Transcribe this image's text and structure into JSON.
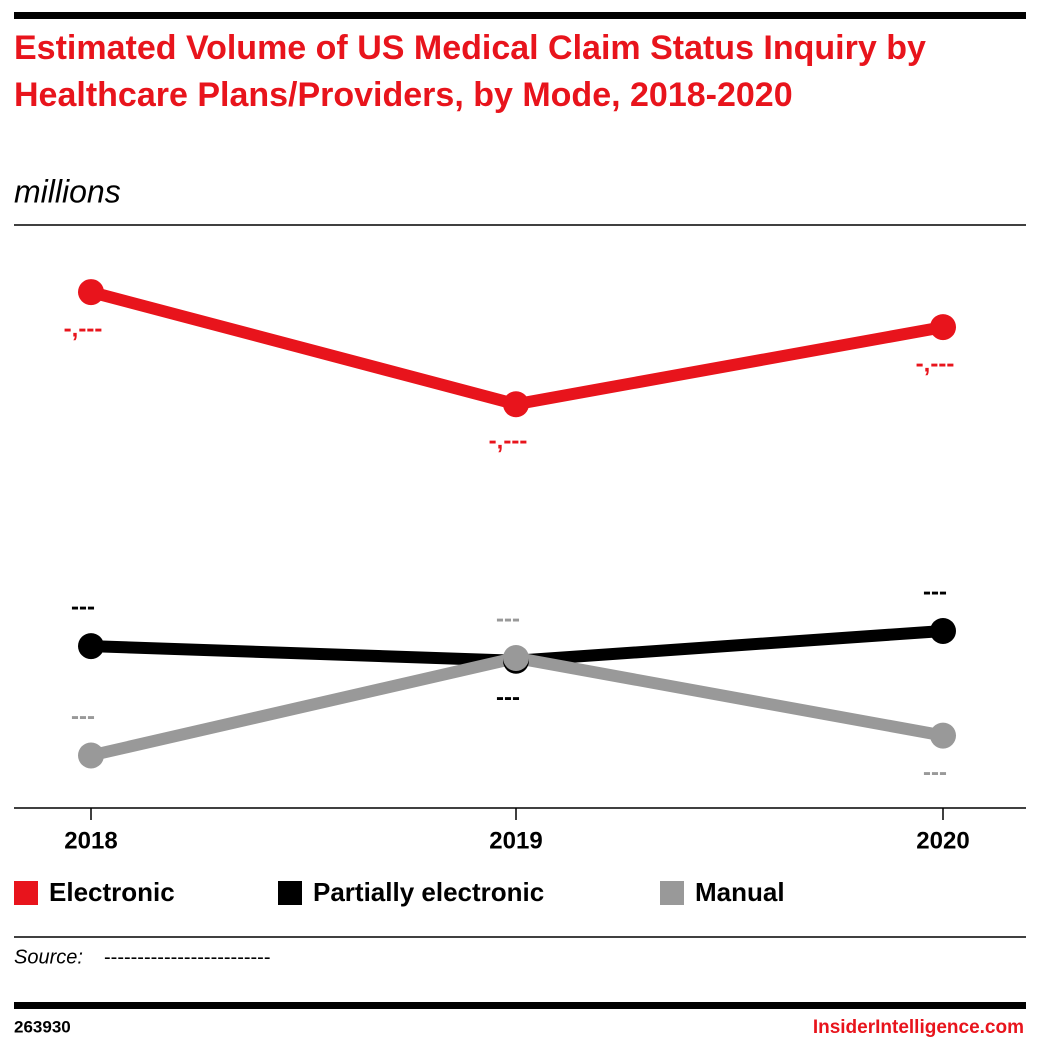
{
  "chart_data": {
    "type": "line",
    "title": "Estimated Volume of US Medical Claim Status Inquiry by Healthcare Plans/Providers, by Mode, 2018-2020",
    "subtitle": "millions",
    "categories": [
      "2018",
      "2019",
      "2020"
    ],
    "series": [
      {
        "name": "Electronic",
        "color": "#e8141c",
        "values": [
          1090,
          853,
          1016
        ],
        "value_labels": [
          "-,---",
          "-,---",
          "-,---"
        ]
      },
      {
        "name": "Partially electronic",
        "color": "#000000",
        "values": [
          342,
          311,
          374
        ],
        "value_labels": [
          "---",
          "---",
          "---"
        ]
      },
      {
        "name": "Manual",
        "color": "#999999",
        "values": [
          111,
          317,
          153
        ],
        "value_labels": [
          "---",
          "---",
          "---"
        ]
      }
    ],
    "ylim": [
      0,
      1200
    ],
    "source_label": "Source:",
    "source": "-------------------------",
    "chart_id": "263930",
    "brand": "InsiderIntelligence.com"
  }
}
